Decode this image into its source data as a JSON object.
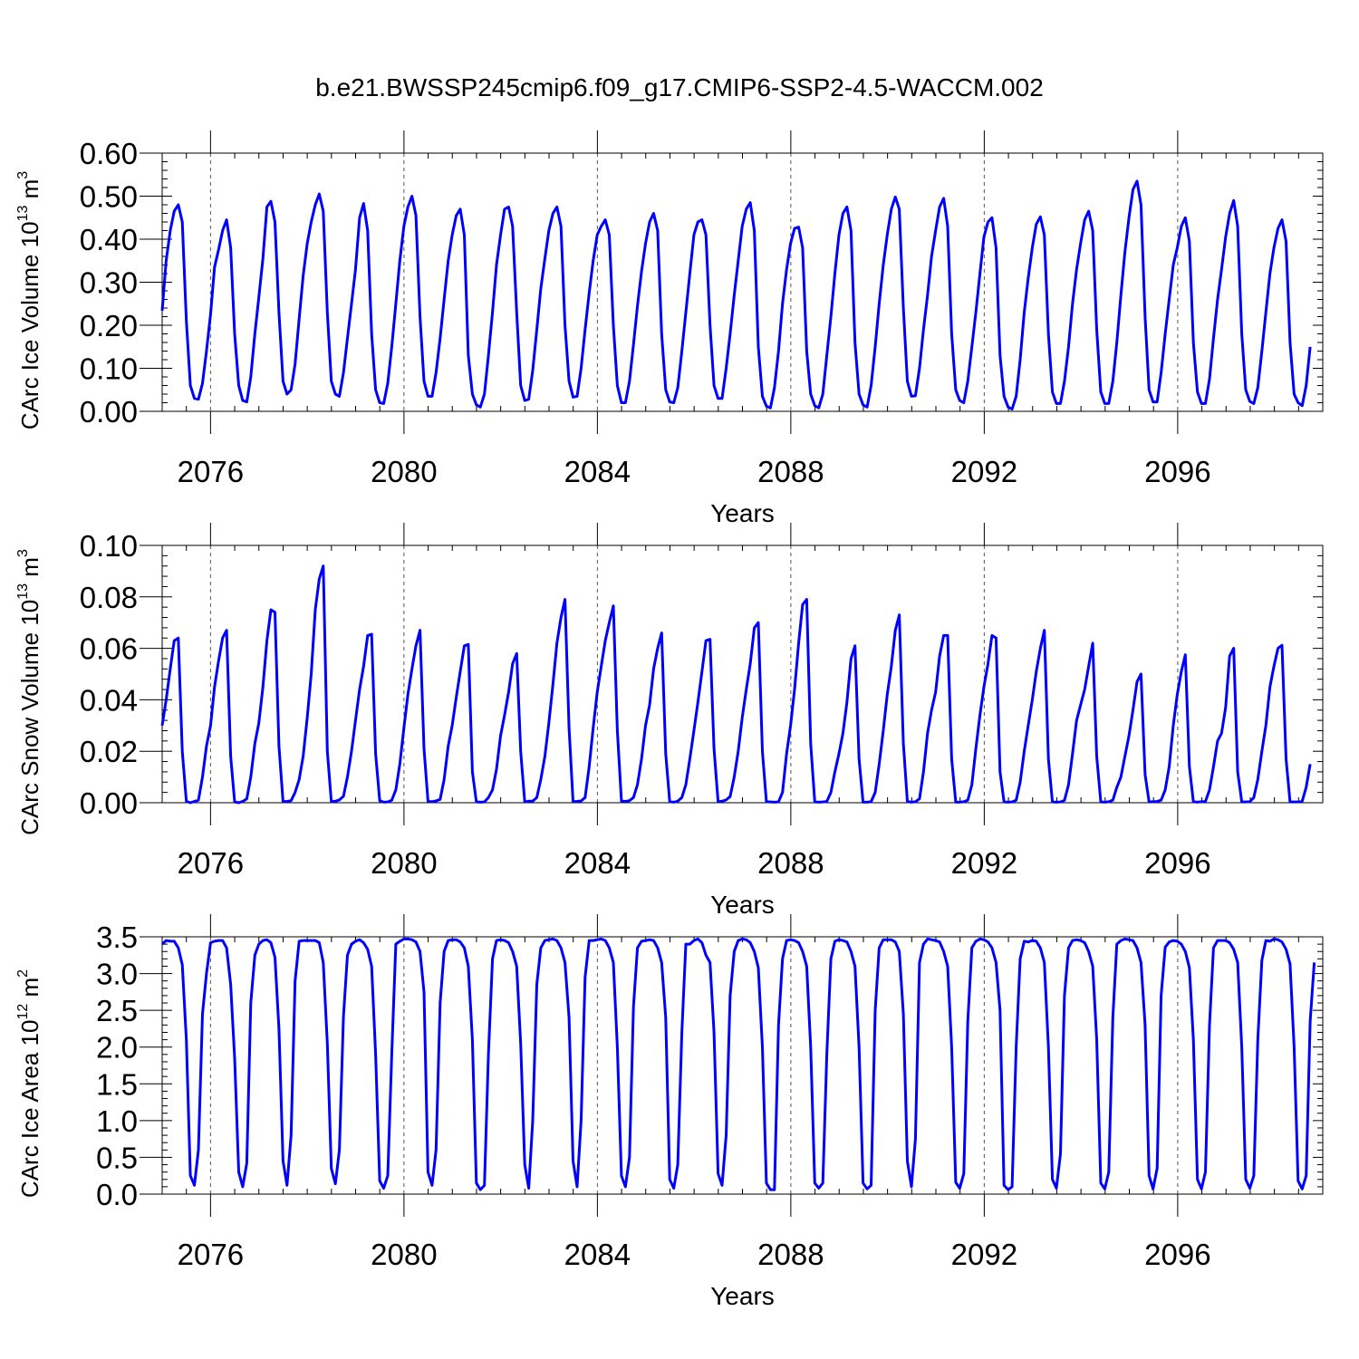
{
  "title": "b.e21.BWSSP245cmip6.f09_g17.CMIP6-SSP2-4.5-WACCM.002",
  "xlabel": "Years",
  "chart_data": [
    {
      "type": "line",
      "ylabel": {
        "text": "CArc Ice Volume 10",
        "sup": "13",
        "unit": " m",
        "unit_sup": "3"
      },
      "xlim": [
        2075.0,
        2099.0
      ],
      "ylim": [
        0.0,
        0.6
      ],
      "x_ticks": [
        2076,
        2080,
        2084,
        2088,
        2092,
        2096
      ],
      "y_ticks": [
        "0.00",
        "0.10",
        "0.20",
        "0.30",
        "0.40",
        "0.50",
        "0.60"
      ],
      "grid_x": "dashed at major x ticks",
      "color": "#0000ff",
      "series": [
        {
          "x_start": 2075.0,
          "x_step": 0.0833,
          "values": [
            0.234,
            0.35,
            0.42,
            0.465,
            0.48,
            0.44,
            0.21,
            0.06,
            0.03,
            0.028,
            0.065,
            0.14,
            0.225,
            0.335,
            0.375,
            0.42,
            0.445,
            0.38,
            0.18,
            0.06,
            0.025,
            0.022,
            0.08,
            0.18,
            0.265,
            0.355,
            0.475,
            0.488,
            0.44,
            0.23,
            0.07,
            0.04,
            0.05,
            0.11,
            0.215,
            0.315,
            0.39,
            0.44,
            0.48,
            0.505,
            0.465,
            0.23,
            0.07,
            0.04,
            0.035,
            0.09,
            0.17,
            0.25,
            0.33,
            0.45,
            0.483,
            0.42,
            0.18,
            0.05,
            0.02,
            0.018,
            0.065,
            0.15,
            0.25,
            0.35,
            0.43,
            0.475,
            0.5,
            0.455,
            0.22,
            0.07,
            0.035,
            0.035,
            0.09,
            0.17,
            0.26,
            0.35,
            0.41,
            0.455,
            0.47,
            0.41,
            0.13,
            0.04,
            0.015,
            0.01,
            0.04,
            0.13,
            0.23,
            0.34,
            0.41,
            0.47,
            0.475,
            0.43,
            0.23,
            0.06,
            0.025,
            0.028,
            0.095,
            0.19,
            0.285,
            0.355,
            0.42,
            0.46,
            0.475,
            0.43,
            0.2,
            0.07,
            0.033,
            0.035,
            0.1,
            0.19,
            0.275,
            0.35,
            0.41,
            0.43,
            0.445,
            0.41,
            0.2,
            0.06,
            0.02,
            0.02,
            0.07,
            0.155,
            0.245,
            0.325,
            0.39,
            0.44,
            0.46,
            0.42,
            0.18,
            0.05,
            0.022,
            0.02,
            0.055,
            0.14,
            0.23,
            0.32,
            0.41,
            0.44,
            0.445,
            0.41,
            0.2,
            0.06,
            0.03,
            0.03,
            0.1,
            0.18,
            0.27,
            0.35,
            0.43,
            0.47,
            0.485,
            0.42,
            0.15,
            0.035,
            0.012,
            0.008,
            0.055,
            0.14,
            0.25,
            0.33,
            0.39,
            0.425,
            0.428,
            0.38,
            0.14,
            0.04,
            0.013,
            0.008,
            0.04,
            0.13,
            0.22,
            0.32,
            0.41,
            0.46,
            0.475,
            0.42,
            0.16,
            0.04,
            0.015,
            0.01,
            0.06,
            0.15,
            0.25,
            0.34,
            0.41,
            0.47,
            0.498,
            0.47,
            0.24,
            0.07,
            0.035,
            0.036,
            0.1,
            0.19,
            0.27,
            0.36,
            0.42,
            0.475,
            0.495,
            0.43,
            0.18,
            0.05,
            0.025,
            0.02,
            0.07,
            0.15,
            0.23,
            0.32,
            0.405,
            0.44,
            0.45,
            0.38,
            0.13,
            0.035,
            0.01,
            0.005,
            0.035,
            0.12,
            0.23,
            0.31,
            0.38,
            0.435,
            0.452,
            0.41,
            0.18,
            0.045,
            0.018,
            0.018,
            0.07,
            0.15,
            0.25,
            0.33,
            0.39,
            0.445,
            0.465,
            0.42,
            0.19,
            0.045,
            0.018,
            0.018,
            0.07,
            0.16,
            0.27,
            0.37,
            0.45,
            0.515,
            0.535,
            0.48,
            0.22,
            0.05,
            0.022,
            0.022,
            0.09,
            0.18,
            0.26,
            0.34,
            0.38,
            0.43,
            0.45,
            0.395,
            0.16,
            0.045,
            0.018,
            0.018,
            0.075,
            0.17,
            0.26,
            0.33,
            0.405,
            0.46,
            0.49,
            0.43,
            0.18,
            0.05,
            0.023,
            0.018,
            0.055,
            0.14,
            0.23,
            0.32,
            0.38,
            0.425,
            0.445,
            0.395,
            0.16,
            0.04,
            0.02,
            0.013,
            0.06,
            0.15
          ]
        }
      ]
    },
    {
      "type": "line",
      "ylabel": {
        "text": "CArc Snow Volume 10",
        "sup": "13",
        "unit": " m",
        "unit_sup": "3"
      },
      "xlim": [
        2075.0,
        2099.0
      ],
      "ylim": [
        0.0,
        0.1
      ],
      "x_ticks": [
        2076,
        2080,
        2084,
        2088,
        2092,
        2096
      ],
      "y_ticks": [
        "0.00",
        "0.02",
        "0.04",
        "0.06",
        "0.08",
        "0.10"
      ],
      "grid_x": "dashed at major x ticks",
      "color": "#0000ff",
      "series": [
        {
          "x_start": 2075.0,
          "x_step": 0.0833,
          "values": [
            0.03,
            0.04,
            0.052,
            0.063,
            0.064,
            0.02,
            0.0005,
            0.0,
            0.0005,
            0.001,
            0.01,
            0.022,
            0.03,
            0.045,
            0.055,
            0.064,
            0.067,
            0.018,
            0.0003,
            0.0,
            0.0005,
            0.0015,
            0.01,
            0.023,
            0.031,
            0.045,
            0.063,
            0.075,
            0.074,
            0.022,
            0.0005,
            0.0005,
            0.0008,
            0.004,
            0.009,
            0.018,
            0.033,
            0.05,
            0.075,
            0.087,
            0.092,
            0.02,
            0.0004,
            0.0006,
            0.0011,
            0.0025,
            0.01,
            0.02,
            0.032,
            0.044,
            0.053,
            0.065,
            0.0655,
            0.019,
            0.0008,
            0.0002,
            0.0003,
            0.001,
            0.005,
            0.015,
            0.029,
            0.042,
            0.052,
            0.061,
            0.067,
            0.021,
            0.0006,
            0.0004,
            0.0007,
            0.0013,
            0.009,
            0.022,
            0.03,
            0.041,
            0.051,
            0.061,
            0.0615,
            0.012,
            0.0003,
            0.0002,
            0.0003,
            0.002,
            0.005,
            0.013,
            0.026,
            0.034,
            0.043,
            0.054,
            0.058,
            0.02,
            0.0003,
            0.0006,
            0.0006,
            0.002,
            0.009,
            0.018,
            0.031,
            0.046,
            0.062,
            0.072,
            0.079,
            0.029,
            0.0005,
            0.0005,
            0.0007,
            0.002,
            0.014,
            0.029,
            0.043,
            0.053,
            0.063,
            0.07,
            0.0765,
            0.028,
            0.0007,
            0.0005,
            0.0008,
            0.002,
            0.007,
            0.017,
            0.03,
            0.038,
            0.052,
            0.06,
            0.066,
            0.019,
            0.0004,
            0.0002,
            0.0006,
            0.002,
            0.007,
            0.017,
            0.028,
            0.039,
            0.051,
            0.063,
            0.0635,
            0.021,
            0.0004,
            0.0006,
            0.0011,
            0.0024,
            0.01,
            0.02,
            0.033,
            0.044,
            0.054,
            0.068,
            0.07,
            0.02,
            0.0004,
            0.0003,
            0.0002,
            0.0003,
            0.004,
            0.019,
            0.03,
            0.044,
            0.062,
            0.077,
            0.079,
            0.023,
            0.0003,
            0.0002,
            0.0003,
            0.0005,
            0.004,
            0.012,
            0.019,
            0.027,
            0.039,
            0.056,
            0.061,
            0.017,
            0.0002,
            0.0002,
            0.0004,
            0.004,
            0.015,
            0.028,
            0.042,
            0.053,
            0.067,
            0.073,
            0.023,
            0.0005,
            0.0002,
            0.0004,
            0.0015,
            0.012,
            0.027,
            0.036,
            0.043,
            0.057,
            0.065,
            0.065,
            0.017,
            0.0002,
            0.0002,
            0.0004,
            0.001,
            0.007,
            0.021,
            0.034,
            0.045,
            0.054,
            0.065,
            0.064,
            0.012,
            0.0003,
            0.0002,
            0.0003,
            0.001,
            0.008,
            0.02,
            0.03,
            0.04,
            0.051,
            0.06,
            0.067,
            0.017,
            0.0003,
            0.0002,
            0.0003,
            0.0009,
            0.007,
            0.019,
            0.032,
            0.038,
            0.044,
            0.053,
            0.062,
            0.018,
            0.0003,
            0.0002,
            0.0004,
            0.001,
            0.006,
            0.01,
            0.018,
            0.026,
            0.036,
            0.047,
            0.05,
            0.011,
            0.0003,
            0.0004,
            0.0005,
            0.001,
            0.005,
            0.014,
            0.03,
            0.042,
            0.051,
            0.0575,
            0.014,
            0.0004,
            0.0002,
            0.0004,
            0.0005,
            0.005,
            0.014,
            0.024,
            0.027,
            0.037,
            0.057,
            0.06,
            0.012,
            0.0003,
            0.0003,
            0.0004,
            0.002,
            0.009,
            0.02,
            0.03,
            0.045,
            0.053,
            0.06,
            0.0612,
            0.017,
            0.0003,
            0.0003,
            0.0003,
            0.0006,
            0.006,
            0.015
          ]
        }
      ]
    },
    {
      "type": "line",
      "ylabel": {
        "text": "CArc Ice Area 10",
        "sup": "12",
        "unit": " m",
        "unit_sup": "2"
      },
      "xlim": [
        2075.0,
        2099.0
      ],
      "ylim": [
        0.0,
        3.5
      ],
      "x_ticks": [
        2076,
        2080,
        2084,
        2088,
        2092,
        2096
      ],
      "y_ticks": [
        "0.0",
        "0.5",
        "1.0",
        "1.5",
        "2.0",
        "2.5",
        "3.0",
        "3.5"
      ],
      "grid_x": "dashed at major x ticks",
      "color": "#0000ff",
      "series": [
        {
          "x_start": 2075.0,
          "x_step": 0.0833,
          "values": [
            3.4,
            3.45,
            3.44,
            3.44,
            3.35,
            3.12,
            2.1,
            0.25,
            0.12,
            0.6,
            2.45,
            3.0,
            3.42,
            3.44,
            3.45,
            3.45,
            3.35,
            2.85,
            1.85,
            0.3,
            0.1,
            0.42,
            2.6,
            3.25,
            3.4,
            3.45,
            3.46,
            3.42,
            3.22,
            2.25,
            0.45,
            0.12,
            0.8,
            2.9,
            3.44,
            3.45,
            3.45,
            3.45,
            3.45,
            3.42,
            3.15,
            2.05,
            0.35,
            0.14,
            0.6,
            2.42,
            3.25,
            3.4,
            3.44,
            3.46,
            3.42,
            3.33,
            3.1,
            1.9,
            0.18,
            0.08,
            0.25,
            1.9,
            3.4,
            3.44,
            3.47,
            3.47,
            3.46,
            3.43,
            3.3,
            2.75,
            0.3,
            0.12,
            0.6,
            2.6,
            3.3,
            3.45,
            3.46,
            3.46,
            3.43,
            3.35,
            3.1,
            2.1,
            0.15,
            0.06,
            0.12,
            1.9,
            3.2,
            3.45,
            3.46,
            3.45,
            3.42,
            3.3,
            3.1,
            2.05,
            0.4,
            0.08,
            1.0,
            2.85,
            3.35,
            3.45,
            3.46,
            3.47,
            3.45,
            3.35,
            3.15,
            2.4,
            0.45,
            0.1,
            1.0,
            2.95,
            3.45,
            3.45,
            3.46,
            3.47,
            3.45,
            3.35,
            3.15,
            2.0,
            0.25,
            0.1,
            0.5,
            2.55,
            3.35,
            3.44,
            3.45,
            3.46,
            3.45,
            3.35,
            3.15,
            2.4,
            0.2,
            0.08,
            0.4,
            2.2,
            3.4,
            3.4,
            3.45,
            3.47,
            3.42,
            3.25,
            3.15,
            2.2,
            0.28,
            0.12,
            0.8,
            2.7,
            3.3,
            3.45,
            3.47,
            3.46,
            3.42,
            3.3,
            3.08,
            2.0,
            0.15,
            0.06,
            0.06,
            2.3,
            3.2,
            3.45,
            3.46,
            3.45,
            3.42,
            3.3,
            3.1,
            2.0,
            0.15,
            0.08,
            0.15,
            1.9,
            3.2,
            3.44,
            3.46,
            3.45,
            3.43,
            3.3,
            3.1,
            2.0,
            0.15,
            0.07,
            0.12,
            2.5,
            3.35,
            3.46,
            3.46,
            3.46,
            3.43,
            3.3,
            2.45,
            0.45,
            0.1,
            0.75,
            3.15,
            3.4,
            3.47,
            3.46,
            3.45,
            3.43,
            3.3,
            3.1,
            2.0,
            0.16,
            0.08,
            0.28,
            2.35,
            3.35,
            3.44,
            3.47,
            3.46,
            3.43,
            3.35,
            3.15,
            2.5,
            0.12,
            0.06,
            0.1,
            2.0,
            3.2,
            3.44,
            3.43,
            3.45,
            3.44,
            3.35,
            3.15,
            2.0,
            0.2,
            0.08,
            0.55,
            2.7,
            3.35,
            3.45,
            3.46,
            3.45,
            3.42,
            3.3,
            3.1,
            2.1,
            0.15,
            0.07,
            0.3,
            2.4,
            3.4,
            3.45,
            3.47,
            3.46,
            3.45,
            3.35,
            3.15,
            2.3,
            0.25,
            0.07,
            0.35,
            2.7,
            3.36,
            3.43,
            3.45,
            3.44,
            3.4,
            3.3,
            3.08,
            2.1,
            0.2,
            0.07,
            0.3,
            2.3,
            3.35,
            3.45,
            3.45,
            3.45,
            3.42,
            3.33,
            3.15,
            2.0,
            0.2,
            0.08,
            0.25,
            2.1,
            3.18,
            3.45,
            3.44,
            3.47,
            3.46,
            3.43,
            3.33,
            3.13,
            2.0,
            0.18,
            0.07,
            0.25,
            2.35,
            3.15
          ]
        }
      ]
    }
  ]
}
